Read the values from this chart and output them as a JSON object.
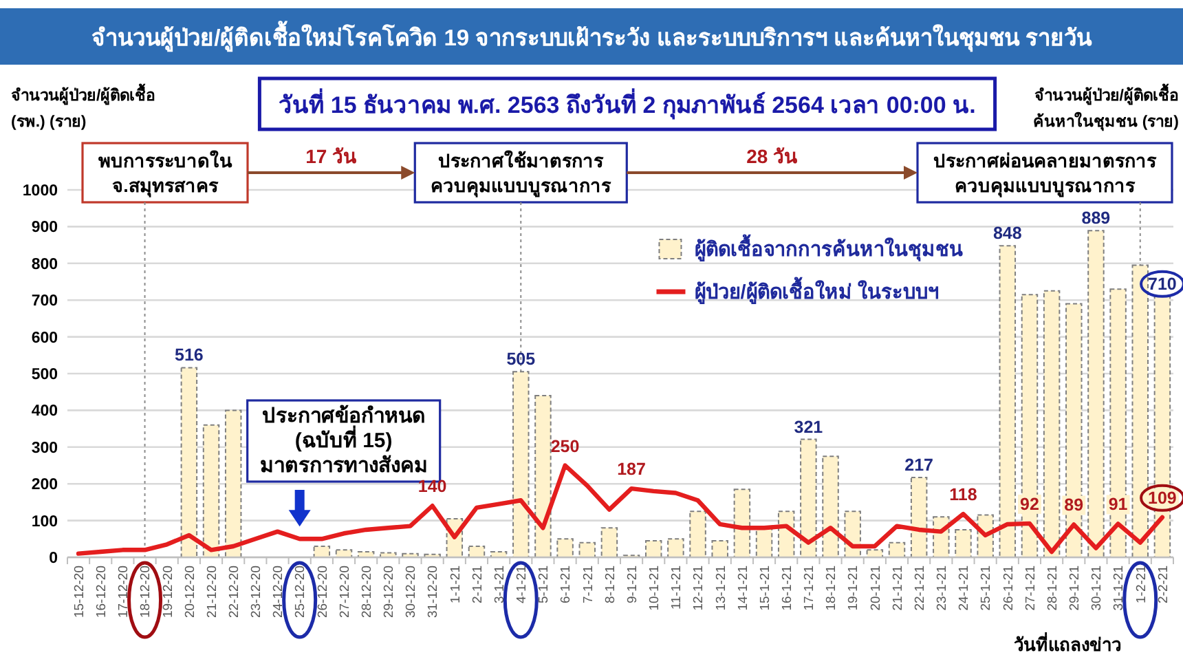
{
  "chart_data": {
    "type": "bar",
    "title": "จำนวนผู้ป่วย/ผู้ติดเชื้อใหม่โรคโควิด 19 จากระบบเฝ้าระวัง และระบบบริการฯ และค้นหาในชุมชน รายวัน",
    "subtitle": "วันที่ 15 ธันวาคม พ.ศ. 2563 ถึงวันที่ 2 กุมภาพันธ์ 2564 เวลา 00:00 น.",
    "xlabel": "วันที่แถลงข่าว",
    "ylabel": "จำนวนผู้ป่วย/ผู้ติดเชื้อ\n(รพ.) (ราย)",
    "categories": [
      "15-12-20",
      "16-12-20",
      "17-12-20",
      "18-12-20",
      "19-12-20",
      "20-12-20",
      "21-12-20",
      "22-12-20",
      "23-12-20",
      "24-12-20",
      "25-12-20",
      "26-12-20",
      "27-12-20",
      "28-12-20",
      "29-12-20",
      "30-12-20",
      "31-12-20",
      "1-1-21",
      "2-1-21",
      "3-1-21",
      "4-1-21",
      "5-1-21",
      "6-1-21",
      "7-1-21",
      "8-1-21",
      "9-1-21",
      "10-1-21",
      "11-1-21",
      "12-1-21",
      "13-1-21",
      "14-1-21",
      "15-1-21",
      "16-1-21",
      "17-1-21",
      "18-1-21",
      "19-1-21",
      "20-1-21",
      "21-1-21",
      "22-1-21",
      "23-1-21",
      "24-1-21",
      "25-1-21",
      "26-1-21",
      "27-1-21",
      "28-1-21",
      "29-1-21",
      "30-1-21",
      "31-1-21",
      "1-2-21",
      "2-2-21"
    ],
    "series": [
      {
        "name": "ผู้ติดเชื้อจากการค้นหาในชุมชน",
        "color": "#fff2cc",
        "values": [
          null,
          null,
          null,
          null,
          null,
          516,
          360,
          400,
          null,
          null,
          null,
          30,
          20,
          15,
          12,
          10,
          8,
          105,
          30,
          15,
          505,
          440,
          50,
          40,
          80,
          5,
          45,
          50,
          125,
          45,
          185,
          80,
          125,
          321,
          275,
          125,
          20,
          40,
          217,
          110,
          75,
          115,
          848,
          715,
          725,
          690,
          889,
          730,
          795,
          710
        ],
        "value_labels": [
          null,
          null,
          null,
          null,
          null,
          "516",
          null,
          null,
          null,
          null,
          null,
          null,
          null,
          null,
          null,
          null,
          null,
          null,
          null,
          null,
          "505",
          null,
          null,
          null,
          null,
          null,
          null,
          null,
          null,
          null,
          null,
          null,
          null,
          "321",
          null,
          null,
          null,
          null,
          "217",
          null,
          null,
          null,
          "848",
          null,
          null,
          null,
          "889",
          null,
          null,
          "710"
        ]
      },
      {
        "name": "ผู้ป่วย/ผู้ติดเชื้อใหม่ ในระบบฯ",
        "type": "line",
        "color": "#e41e1e",
        "values": [
          10,
          15,
          20,
          20,
          35,
          60,
          20,
          30,
          50,
          70,
          50,
          50,
          65,
          75,
          80,
          85,
          140,
          55,
          135,
          145,
          155,
          80,
          250,
          195,
          130,
          187,
          180,
          175,
          155,
          90,
          80,
          80,
          85,
          40,
          80,
          30,
          30,
          85,
          75,
          70,
          118,
          60,
          90,
          92,
          15,
          89,
          25,
          91,
          40,
          109
        ],
        "value_labels": [
          null,
          null,
          null,
          null,
          null,
          null,
          null,
          null,
          null,
          null,
          null,
          null,
          null,
          null,
          null,
          null,
          "140",
          null,
          null,
          null,
          null,
          null,
          "250",
          null,
          null,
          "187",
          null,
          null,
          null,
          null,
          null,
          null,
          null,
          null,
          null,
          null,
          null,
          null,
          null,
          null,
          "118",
          null,
          null,
          "92",
          null,
          "89",
          null,
          "91",
          null,
          "109"
        ]
      }
    ],
    "ylim": [
      0,
      1000
    ],
    "yticks": [
      0,
      100,
      200,
      300,
      400,
      500,
      600,
      700,
      800,
      900,
      1000
    ],
    "grid": "y",
    "legend": "top right",
    "ref_lines": [
      {
        "axis": "x",
        "value": "18-12-20",
        "label": "พบการระบาดใน\nจ.สมุทรสาคร",
        "line_style": "dotted"
      },
      {
        "axis": "x",
        "value": "4-1-21",
        "label": "ประกาศใช้มาตรการ\nควบคุมแบบบูรณาการ",
        "line_style": "dotted"
      },
      {
        "axis": "x",
        "value": "1-2-21",
        "label": "ประกาศผ่อนคลายมาตรการ\nควบคุมแบบบูรณาการ",
        "line_style": "dotted"
      }
    ],
    "annotations": [
      "จำนวนผู้ป่วย/ผู้ติดเชื้อ\nค้นหาในชุมชน (ราย)",
      "17 วัน",
      "28 วัน",
      {
        "text": "ประกาศข้อกำหนด\n(ฉบับที่ 15)\nมาตรการทางสังคม",
        "x": "25-12-20",
        "y": 50
      }
    ]
  }
}
